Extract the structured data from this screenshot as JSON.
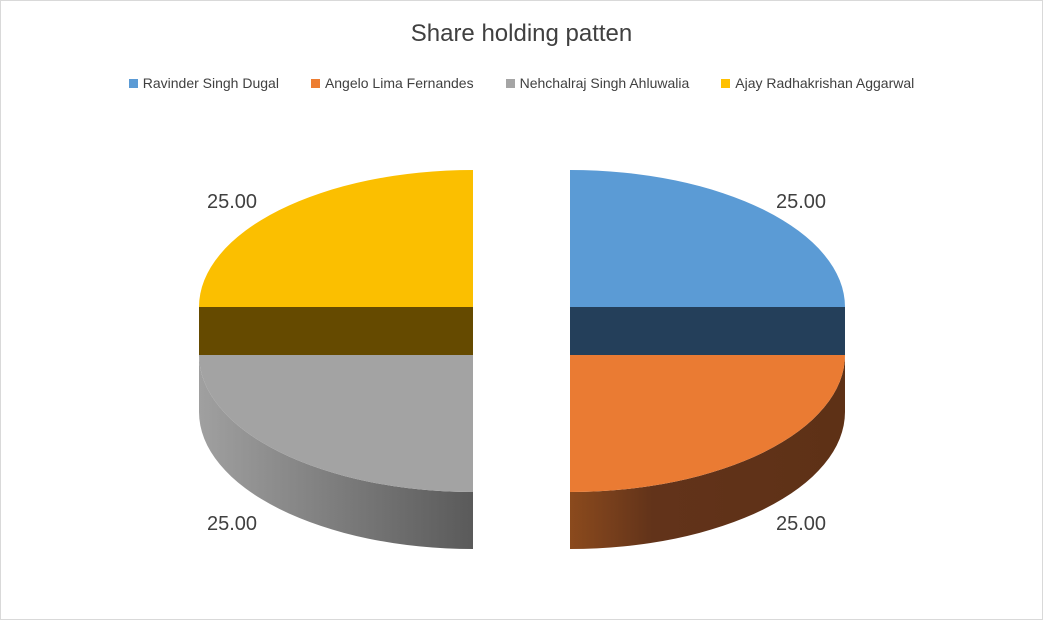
{
  "chart_data": {
    "type": "pie",
    "style": "3d-exploded",
    "title": "Share holding patten",
    "legend_position": "top",
    "categories": [
      "Ravinder Singh Dugal",
      "Angelo Lima Fernandes",
      "Nehchalraj Singh Ahluwalia",
      "Ajay Radhakrishan Aggarwal"
    ],
    "values": [
      25.0,
      25.0,
      25.0,
      25.0
    ],
    "data_labels": [
      "25.00",
      "25.00",
      "25.00",
      "25.00"
    ],
    "colors": [
      "#5b9bd5",
      "#ed7d31",
      "#a5a5a5",
      "#ffc000"
    ]
  }
}
